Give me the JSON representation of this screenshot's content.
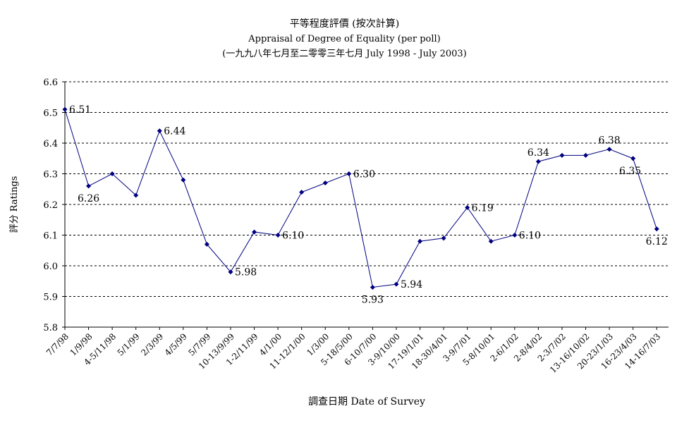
{
  "chart_data": {
    "type": "line",
    "title": "平等程度評價 (按次計算)",
    "subtitle": "Appraisal of Degree of Equality (per poll)",
    "subtitle2": "(一九九八年七月至二零零三年七月 July 1998 - July 2003)",
    "xlabel": "調查日期 Date of Survey",
    "ylabel": "評分 Ratings",
    "ylim": [
      5.8,
      6.6
    ],
    "yticks": [
      "5.8",
      "5.9",
      "6.0",
      "6.1",
      "6.2",
      "6.3",
      "6.4",
      "6.5",
      "6.6"
    ],
    "grid": true,
    "grid_style": "dashed",
    "series_color": "#000080",
    "x_tick_labels": [
      "7/7/98",
      "1/9/98",
      "4-5/11/98",
      "5/1/99",
      "2/3/99",
      "4/5/99",
      "5/7/99",
      "10-13/9/99",
      "1-2/11/99",
      "4/1/00",
      "11-12/1/00",
      "1/3/00",
      "5-18/5/00",
      "6-10/7/00",
      "3-9/10/00",
      "17-19/1/01",
      "18-30/4/01",
      "3-9/7/01",
      "5-8/10/01",
      "2-6/1/02",
      "2-8/4/02",
      "2-3/7/02",
      "13-16/10/02",
      "20-23/1/03",
      "16-23/4/03",
      "14-16/7/03"
    ],
    "series": [
      {
        "values": [
          6.51,
          6.26,
          6.3,
          6.23,
          6.44,
          6.28,
          6.07,
          5.98,
          6.11,
          6.1,
          6.24,
          6.27,
          6.3,
          5.93,
          5.94,
          6.08,
          6.09,
          6.19,
          6.08,
          6.1,
          6.34,
          6.36,
          6.36,
          6.38,
          6.35,
          6.12
        ]
      }
    ],
    "data_labels": [
      {
        "index": 0,
        "text": "6.51",
        "pos": "right"
      },
      {
        "index": 1,
        "text": "6.26",
        "pos": "below"
      },
      {
        "index": 4,
        "text": "6.44",
        "pos": "right"
      },
      {
        "index": 7,
        "text": "5.98",
        "pos": "right"
      },
      {
        "index": 9,
        "text": "6.10",
        "pos": "right"
      },
      {
        "index": 12,
        "text": "6.30",
        "pos": "right"
      },
      {
        "index": 13,
        "text": "5.93",
        "pos": "below"
      },
      {
        "index": 14,
        "text": "5.94",
        "pos": "right"
      },
      {
        "index": 17,
        "text": "6.19",
        "pos": "right"
      },
      {
        "index": 19,
        "text": "6.10",
        "pos": "right"
      },
      {
        "index": 20,
        "text": "6.34",
        "pos": "above"
      },
      {
        "index": 23,
        "text": "6.38",
        "pos": "above"
      },
      {
        "index": 24,
        "text": "6.35",
        "pos": "below-left"
      },
      {
        "index": 25,
        "text": "6.12",
        "pos": "below"
      }
    ]
  }
}
